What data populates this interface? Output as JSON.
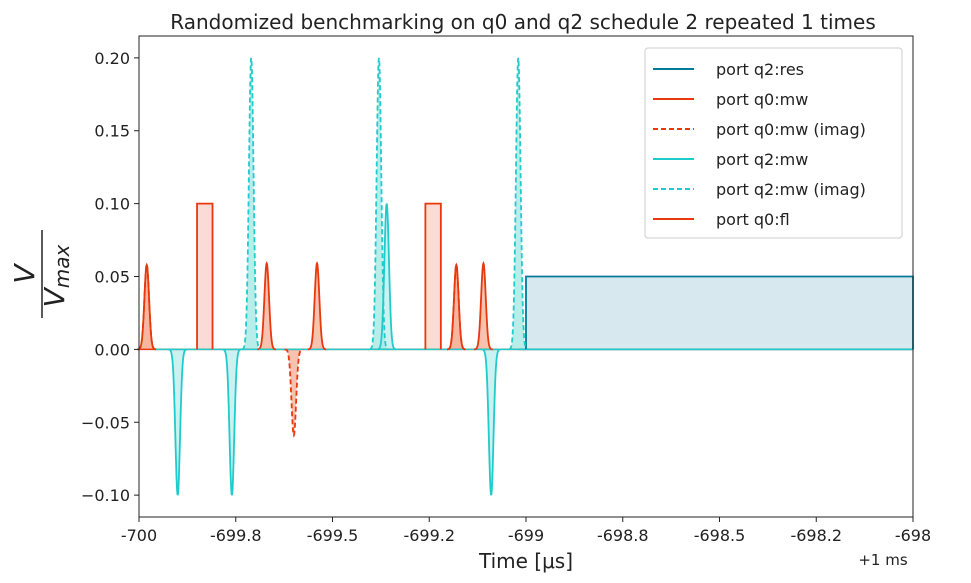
{
  "chart_data": {
    "type": "line",
    "title": "Randomized benchmarking on q0 and q2 schedule 2 repeated 1 times",
    "xlabel": "Time [μs]",
    "xoffset_label": "+1 ms",
    "ylabel": "V/Vmax",
    "ylabel_numerator": "V",
    "ylabel_denominator_main": "V",
    "ylabel_denominator_sub": "max",
    "xlim": [
      -700,
      -698
    ],
    "ylim": [
      -0.115,
      0.215
    ],
    "x_ticks": [
      {
        "value": -700,
        "label": "-700"
      },
      {
        "value": -699.75,
        "label": "-699.8"
      },
      {
        "value": -699.5,
        "label": "-699.5"
      },
      {
        "value": -699.25,
        "label": "-699.2"
      },
      {
        "value": -699.0,
        "label": "-699"
      },
      {
        "value": -698.75,
        "label": "-698.8"
      },
      {
        "value": -698.5,
        "label": "-698.5"
      },
      {
        "value": -698.25,
        "label": "-698.2"
      },
      {
        "value": -698.0,
        "label": "-698"
      }
    ],
    "y_ticks": [
      {
        "value": -0.1,
        "label": "−0.10"
      },
      {
        "value": -0.05,
        "label": "−0.05"
      },
      {
        "value": 0.0,
        "label": "0.00"
      },
      {
        "value": 0.05,
        "label": "0.05"
      },
      {
        "value": 0.1,
        "label": "0.10"
      },
      {
        "value": 0.15,
        "label": "0.15"
      },
      {
        "value": 0.2,
        "label": "0.20"
      }
    ],
    "grid": false,
    "legend_position": "top-right",
    "series": [
      {
        "name": "port q2:res",
        "color": "#007a99",
        "style": "solid",
        "fill": "#cde4ea",
        "pulses": [
          {
            "kind": "square",
            "start": -699.0,
            "end": -698.0,
            "amp": 0.05
          }
        ]
      },
      {
        "name": "port q0:mw",
        "color": "#e8380d",
        "style": "solid",
        "fill": "#f6b39c",
        "pulses": [
          {
            "kind": "gauss",
            "center": -699.98,
            "amp": 0.058,
            "sigma": 0.006
          },
          {
            "kind": "gauss",
            "center": -699.67,
            "amp": 0.059,
            "sigma": 0.006
          },
          {
            "kind": "gauss",
            "center": -699.54,
            "amp": 0.059,
            "sigma": 0.006
          },
          {
            "kind": "gauss",
            "center": -699.18,
            "amp": 0.058,
            "sigma": 0.006
          },
          {
            "kind": "gauss",
            "center": -699.11,
            "amp": 0.059,
            "sigma": 0.006
          }
        ]
      },
      {
        "name": "port q0:mw (imag)",
        "color": "#e8380d",
        "style": "dashed",
        "fill": "#f6b39c",
        "pulses": [
          {
            "kind": "gauss",
            "center": -699.98,
            "amp": 0.058,
            "sigma": 0.006
          },
          {
            "kind": "gauss",
            "center": -699.6,
            "amp": -0.059,
            "sigma": 0.006
          },
          {
            "kind": "gauss",
            "center": -699.18,
            "amp": 0.058,
            "sigma": 0.006
          }
        ]
      },
      {
        "name": "port q2:mw",
        "color": "#1fcbcb",
        "style": "solid",
        "fill": "#bfeeee",
        "pulses": [
          {
            "kind": "gauss",
            "center": -699.9,
            "amp": -0.1,
            "sigma": 0.006
          },
          {
            "kind": "gauss",
            "center": -699.76,
            "amp": -0.1,
            "sigma": 0.006
          },
          {
            "kind": "gauss",
            "center": -699.36,
            "amp": 0.1,
            "sigma": 0.006
          },
          {
            "kind": "gauss",
            "center": -699.09,
            "amp": -0.1,
            "sigma": 0.006
          }
        ]
      },
      {
        "name": "port q2:mw (imag)",
        "color": "#1fcbcb",
        "style": "dashed",
        "fill": "#a6e8e4",
        "pulses": [
          {
            "kind": "gauss",
            "center": -699.71,
            "amp": 0.2,
            "sigma": 0.006
          },
          {
            "kind": "gauss",
            "center": -699.38,
            "amp": 0.2,
            "sigma": 0.006
          },
          {
            "kind": "gauss",
            "center": -699.02,
            "amp": 0.2,
            "sigma": 0.006
          }
        ]
      },
      {
        "name": "port q0:fl",
        "color": "#e8380d",
        "style": "solid",
        "fill": "#f9d2cb",
        "pulses": [
          {
            "kind": "square",
            "start": -699.85,
            "end": -699.81,
            "amp": 0.1
          },
          {
            "kind": "square",
            "start": -699.26,
            "end": -699.22,
            "amp": 0.1
          }
        ]
      }
    ]
  }
}
